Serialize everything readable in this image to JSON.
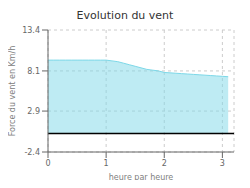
{
  "chart_data": {
    "type": "area",
    "title": "Evolution du vent",
    "xlabel": "heure par heure",
    "ylabel": "Force du vent en Km/h",
    "x": [
      0,
      0.1,
      0.2,
      0.3,
      0.4,
      0.5,
      0.6,
      0.7,
      0.8,
      0.9,
      1.0,
      1.1,
      1.2,
      1.3,
      1.4,
      1.5,
      1.6,
      1.7,
      1.8,
      1.9,
      2.0,
      2.1,
      2.2,
      2.3,
      2.4,
      2.5,
      2.6,
      2.7,
      2.8,
      2.9,
      3.0,
      3.1
    ],
    "values": [
      9.5,
      9.5,
      9.5,
      9.5,
      9.5,
      9.5,
      9.5,
      9.5,
      9.5,
      9.5,
      9.5,
      9.4,
      9.3,
      9.1,
      8.9,
      8.7,
      8.5,
      8.3,
      8.2,
      8.1,
      7.9,
      7.85,
      7.8,
      7.75,
      7.7,
      7.65,
      7.6,
      7.55,
      7.5,
      7.45,
      7.4,
      7.35
    ],
    "baseline": 0.0,
    "color": "#7dd8e8",
    "xlim": [
      0,
      3.2
    ],
    "ylim": [
      -2.4,
      13.4
    ],
    "xticks": [
      0,
      1,
      2,
      3
    ],
    "yticks": [
      -2.4,
      2.9,
      8.1,
      13.4
    ],
    "grid": true
  }
}
